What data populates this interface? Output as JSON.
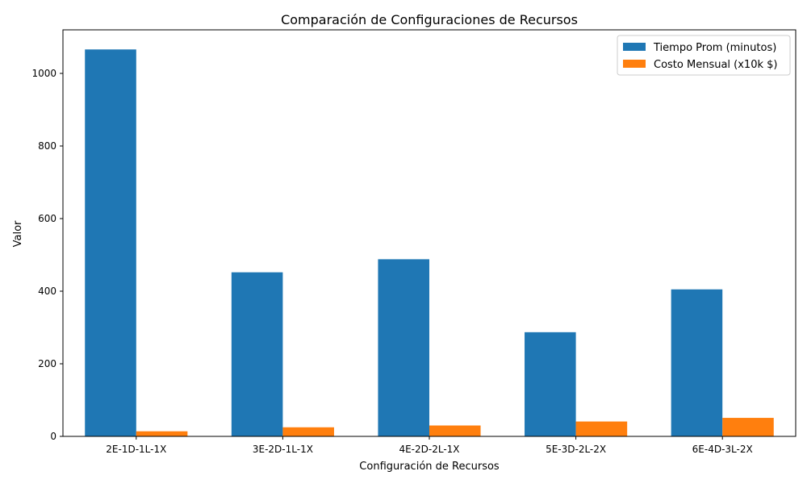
{
  "chart_data": {
    "type": "bar",
    "title": "Comparación de Configuraciones de Recursos",
    "xlabel": "Configuración de Recursos",
    "ylabel": "Valor",
    "categories": [
      "2E-1D-1L-1X",
      "3E-2D-1L-1X",
      "4E-2D-2L-1X",
      "5E-3D-2L-2X",
      "6E-4D-3L-2X"
    ],
    "series": [
      {
        "name": "Tiempo Prom (minutos)",
        "color": "#1f77b4",
        "values": [
          1066,
          452,
          488,
          287,
          405
        ]
      },
      {
        "name": "Costo Mensual (x10k $)",
        "color": "#ff7f0e",
        "values": [
          14,
          25,
          30,
          41,
          51
        ]
      }
    ],
    "ylim": [
      0,
      1120
    ],
    "yticks": [
      0,
      200,
      400,
      600,
      800,
      1000
    ],
    "grid": false,
    "legend_position": "top-right"
  }
}
